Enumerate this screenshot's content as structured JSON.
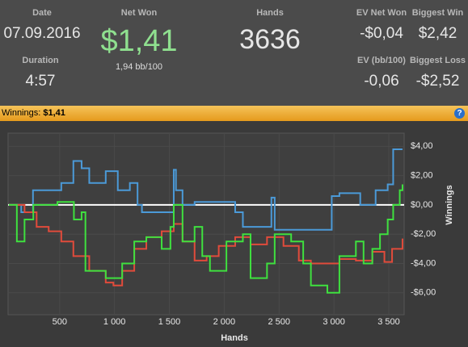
{
  "header": {
    "date": {
      "label": "Date",
      "value": "07.09.2016"
    },
    "duration": {
      "label": "Duration",
      "value": "4:57"
    },
    "net_won": {
      "label": "Net Won",
      "value": "$1,41",
      "sub": "1,94 bb/100"
    },
    "hands": {
      "label": "Hands",
      "value": "3636"
    },
    "ev_net_won": {
      "label": "EV Net Won",
      "value": "-$0,04"
    },
    "biggest_win": {
      "label": "Biggest Win",
      "value": "$2,42"
    },
    "ev_bb": {
      "label": "EV (bb/100)",
      "value": "-0,06"
    },
    "biggest_loss": {
      "label": "Biggest Loss",
      "value": "-$2,52"
    }
  },
  "bar": {
    "label": "Winnings:",
    "value": "$1,41",
    "help": "?"
  },
  "chart_data": {
    "type": "line",
    "x_label": "Hands",
    "y_label": "Winnings",
    "xlim": [
      30,
      3640
    ],
    "ylim": [
      -7.5,
      4.9
    ],
    "xticks": [
      {
        "value": 500,
        "label": "500"
      },
      {
        "value": 1000,
        "label": "1 000"
      },
      {
        "value": 1500,
        "label": "1 500"
      },
      {
        "value": 2000,
        "label": "2 000"
      },
      {
        "value": 2500,
        "label": "2 500"
      },
      {
        "value": 3000,
        "label": "3 000"
      },
      {
        "value": 3500,
        "label": "3 500"
      }
    ],
    "yticks": [
      {
        "value": 4,
        "label": "$4,00"
      },
      {
        "value": 2,
        "label": "$2,00"
      },
      {
        "value": 0,
        "label": "$0,00"
      },
      {
        "value": -2,
        "label": "-$2,00"
      },
      {
        "value": -4,
        "label": "-$4,00"
      },
      {
        "value": -6,
        "label": "-$6,00"
      }
    ],
    "grid": true,
    "series": [
      {
        "color": "#4b9ad8",
        "x": [
          37,
          150,
          257,
          515,
          625,
          700,
          770,
          920,
          1030,
          1140,
          1210,
          1250,
          1540,
          1560,
          1620,
          1730,
          2100,
          2170,
          2430,
          2460,
          2500,
          2980,
          3050,
          3240,
          3380,
          3490,
          3540,
          3625
        ],
        "values": [
          0,
          -0.5,
          1,
          1.5,
          3,
          2.5,
          1.5,
          2.3,
          1,
          1.5,
          0,
          -0.5,
          2.4,
          1,
          0,
          0.2,
          -0.5,
          -1.5,
          0.5,
          -1.7,
          -1.7,
          0.6,
          0.8,
          0,
          1,
          1.4,
          3.8,
          3.8
        ]
      },
      {
        "color": "#e14b3b",
        "x": [
          37,
          180,
          290,
          400,
          515,
          625,
          770,
          920,
          990,
          1070,
          1180,
          1290,
          1430,
          1540,
          1620,
          1730,
          1840,
          1950,
          2100,
          2240,
          2390,
          2540,
          2680,
          2790,
          2900,
          3050,
          3200,
          3350,
          3460,
          3530,
          3625
        ],
        "values": [
          0,
          -0.5,
          -1.5,
          -1.8,
          -2.5,
          -3.5,
          -4.5,
          -5.3,
          -5.5,
          -4.5,
          -3,
          -2.2,
          -1.8,
          -1.3,
          -2.5,
          -3.8,
          -3.5,
          -2.8,
          -2.2,
          -2.7,
          -2.2,
          -2.8,
          -3.8,
          -4,
          -4,
          -3.7,
          -3.8,
          -3.2,
          -3.9,
          -3,
          -2.3
        ]
      },
      {
        "color": "#3fe03f",
        "x": [
          37,
          110,
          180,
          260,
          370,
          480,
          630,
          700,
          735,
          920,
          990,
          1070,
          1180,
          1290,
          1430,
          1510,
          1540,
          1620,
          1730,
          1800,
          1870,
          2020,
          2170,
          2240,
          2390,
          2460,
          2610,
          2720,
          2790,
          2940,
          3050,
          3200,
          3270,
          3350,
          3420,
          3490,
          3540,
          3600,
          3625
        ],
        "values": [
          0,
          -2.5,
          -1,
          0,
          0,
          0.2,
          -1,
          -0.5,
          -4.5,
          -5,
          -5,
          -4,
          -2.5,
          -2.2,
          -3,
          -1.5,
          0,
          -2.5,
          -1.5,
          -3.5,
          -4.5,
          -2.5,
          -2,
          -5,
          -4,
          -2,
          -2.5,
          -4,
          -5.5,
          -6,
          -3.5,
          -2.5,
          -4,
          -3,
          -2,
          -1,
          0,
          1,
          1.4
        ]
      }
    ]
  }
}
